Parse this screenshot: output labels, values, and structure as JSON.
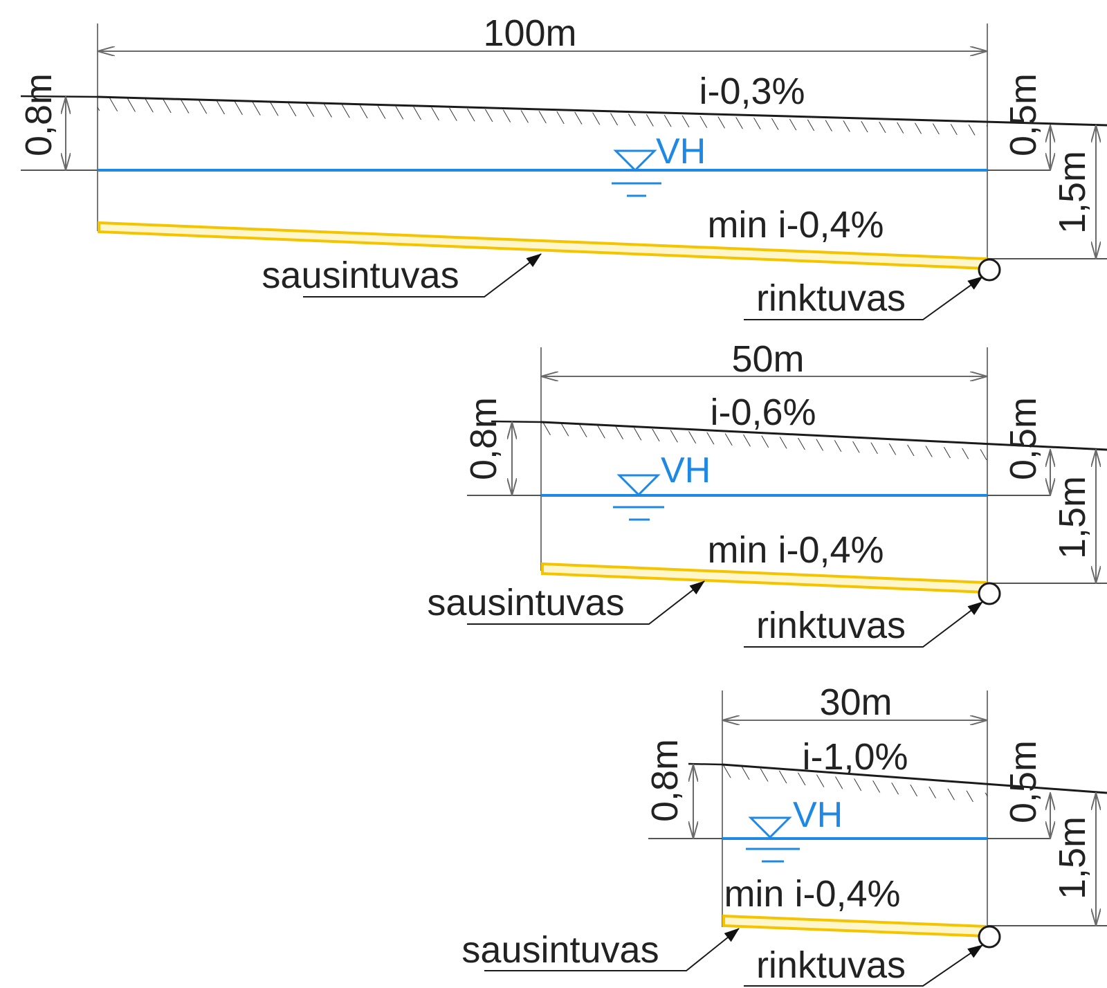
{
  "colors": {
    "line": "#1a1a1a",
    "dim": "#6a6a6a",
    "water": "#1e88e5",
    "drain": "#f5c400",
    "text": "#222222"
  },
  "panels": [
    {
      "id": "panel-100m",
      "width_label": "100m",
      "slope_label": "i-0,3%",
      "left_depth_label": "0,8m",
      "right_depth_label": "0,5m",
      "drain_depth_label": "1,5m",
      "water_label": "VH",
      "drain_slope_label": "min i-0,4%",
      "drain_label": "sausintuvas",
      "collector_label": "rinktuvas"
    },
    {
      "id": "panel-50m",
      "width_label": "50m",
      "slope_label": "i-0,6%",
      "left_depth_label": "0,8m",
      "right_depth_label": "0,5m",
      "drain_depth_label": "1,5m",
      "water_label": "VH",
      "drain_slope_label": "min i-0,4%",
      "drain_label": "sausintuvas",
      "collector_label": "rinktuvas"
    },
    {
      "id": "panel-30m",
      "width_label": "30m",
      "slope_label": "i-1,0%",
      "left_depth_label": "0,8m",
      "right_depth_label": "0,5m",
      "drain_depth_label": "1,5m",
      "water_label": "VH",
      "drain_slope_label": "min i-0,4%",
      "drain_label": "sausintuvas",
      "collector_label": "rinktuvas"
    }
  ]
}
